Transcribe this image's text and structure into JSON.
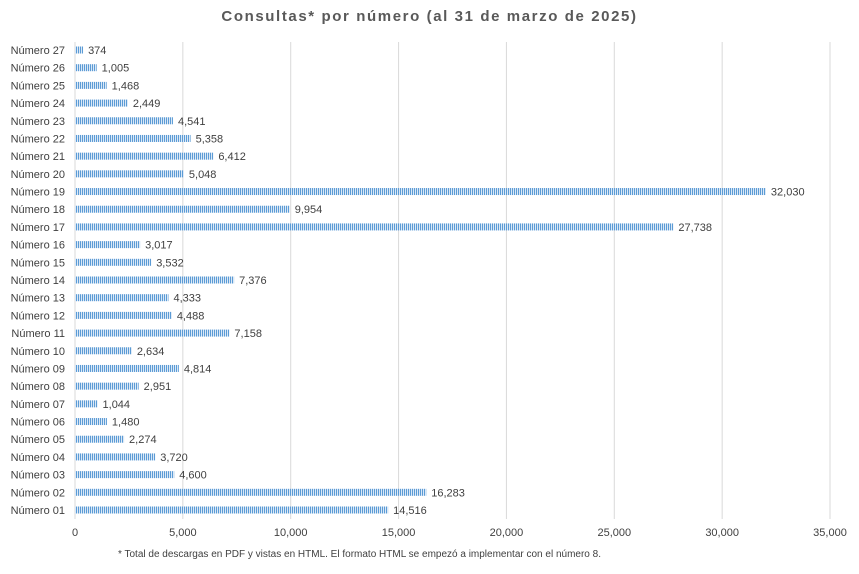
{
  "chart_data": {
    "type": "bar",
    "orientation": "horizontal",
    "title": "Consultas*  por número (al 31 de marzo de 2025)",
    "xlabel": "",
    "ylabel": "",
    "categories": [
      "Número 01",
      "Número 02",
      "Número 03",
      "Número 04",
      "Número 05",
      "Número 06",
      "Número 07",
      "Número 08",
      "Número 09",
      "Número 10",
      "Número 11",
      "Número 12",
      "Número 13",
      "Número 14",
      "Número 15",
      "Número 16",
      "Número 17",
      "Número 18",
      "Número 19",
      "Número 20",
      "Número 21",
      "Número 22",
      "Número 23",
      "Número 24",
      "Número 25",
      "Número 26",
      "Número 27"
    ],
    "values": [
      14516,
      16283,
      4600,
      3720,
      2274,
      1480,
      1044,
      2951,
      4814,
      2634,
      7158,
      4488,
      4333,
      7376,
      3532,
      3017,
      27738,
      9954,
      32030,
      5048,
      6412,
      5358,
      4541,
      2449,
      1468,
      1005,
      374
    ],
    "value_labels": [
      "14,516",
      "16,283",
      "4,600",
      "3,720",
      "2,274",
      "1,480",
      "1,044",
      "2,951",
      "4,814",
      "2,634",
      "7,158",
      "4,488",
      "4,333",
      "7,376",
      "3,532",
      "3,017",
      "27,738",
      "9,954",
      "32,030",
      "5,048",
      "6,412",
      "5,358",
      "4,541",
      "2,449",
      "1,468",
      "1,005",
      "374"
    ],
    "xlim": [
      0,
      35000
    ],
    "x_ticks": [
      0,
      5000,
      10000,
      15000,
      20000,
      25000,
      30000,
      35000
    ],
    "x_tick_labels": [
      "0",
      "5,000",
      "10,000",
      "15,000",
      "20,000",
      "25,000",
      "30,000",
      "35,000"
    ],
    "grid": "vertical",
    "legend": "none",
    "bar_color": "#5b9bd5",
    "gridline_color": "#d9d9d9"
  },
  "footnote": "* Total de descargas en PDF y vistas en HTML. El formato HTML se empezó a implementar con el número 8."
}
